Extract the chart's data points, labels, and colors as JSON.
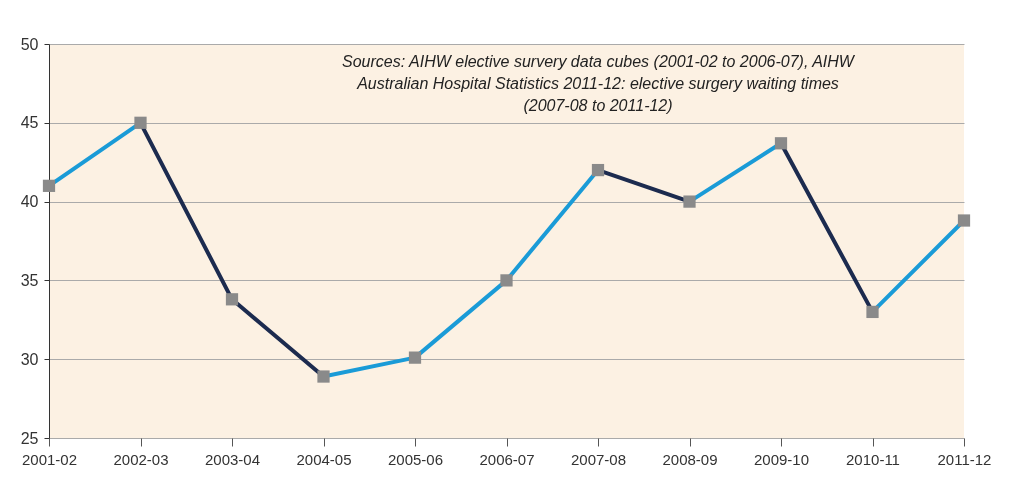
{
  "chart_data": {
    "type": "line",
    "categories": [
      "2001-02",
      "2002-03",
      "2003-04",
      "2004-05",
      "2005-06",
      "2006-07",
      "2007-08",
      "2008-09",
      "2009-10",
      "2010-11",
      "2011-12"
    ],
    "series": [
      {
        "values": [
          41,
          45,
          33.8,
          28.9,
          30.1,
          35,
          42,
          40,
          43.7,
          33,
          38.8
        ],
        "colors": [
          "#1a9bd7",
          "#1a9bd7",
          "#1c2b4f",
          "#1c2b4f",
          "#1a9bd7",
          "#1a9bd7",
          "#1a9bd7",
          "#1c2b4f",
          "#1a9bd7",
          "#1c2b4f",
          "#1a9bd7"
        ]
      }
    ],
    "ylim": [
      25,
      50
    ],
    "yticks": [
      25,
      30,
      35,
      40,
      45,
      50
    ],
    "grid": "y",
    "marker": "square",
    "line_style": "solid",
    "annotations": [
      "Sources: AIHW elective survery data cubes (2001-02 to 2006-07), AIHW Australian Hospital Statistics 2011-12: elective surgery waiting times (2007-08 to 2011-12)"
    ]
  }
}
